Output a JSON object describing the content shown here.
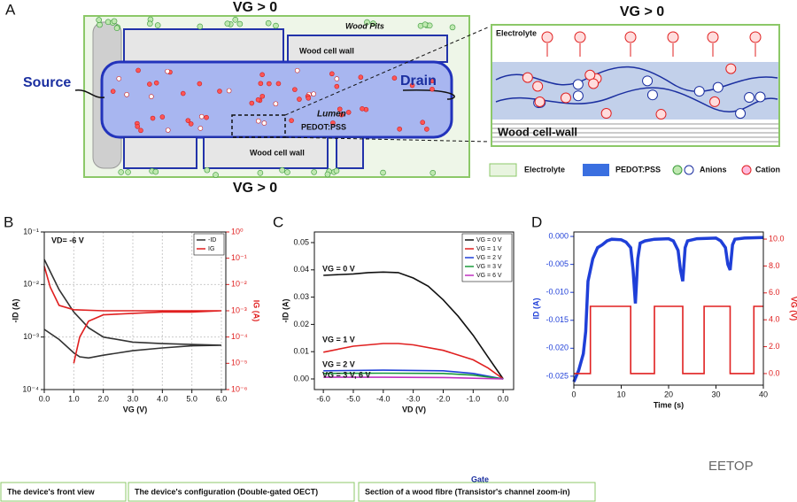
{
  "panel_labels": [
    "A",
    "B",
    "C",
    "D"
  ],
  "diagram": {
    "gate_top": "VG > 0",
    "gate_bottom": "VG > 0",
    "source": "Source",
    "drain": "Drain",
    "wood_pits": "Wood Pits",
    "wood_cell_wall_top": "Wood cell wall",
    "wood_cell_wall_bottom": "Wood cell wall",
    "lumen": "Lumen",
    "pedot": "PEDOT:PSS"
  },
  "zoom": {
    "gate": "VG > 0",
    "electrolyte": "Electrolyte",
    "wall": "Wood cell-wall"
  },
  "legend": [
    "Electrolyte",
    "PEDOT:PSS",
    "Anions",
    "Cation"
  ],
  "captions": [
    "The device's front view",
    "The device's configuration (Double-gated OECT)",
    "Section of a wood fibre (Transistor's channel zoom-in)"
  ],
  "gate_caption": "Gate",
  "watermark": "EETOP",
  "chart_data": [
    {
      "type": "line",
      "xlabel": "VG (V)",
      "ylabel": "-ID (A)",
      "y2label": "IG (A)",
      "ylog": true,
      "y2log": true,
      "grid": true,
      "legend": "upper right",
      "y2_axis_color": "#e02020",
      "annotations": [
        "VD= -6 V"
      ],
      "xlim": [
        0,
        6.15
      ],
      "xticks": [
        {
          "value": 0,
          "label": "0.0"
        },
        {
          "value": 1,
          "label": "1.0"
        },
        {
          "value": 2,
          "label": "2.0"
        },
        {
          "value": 3,
          "label": "3.0"
        },
        {
          "value": 4,
          "label": "4.0"
        },
        {
          "value": 5,
          "label": "5.0"
        },
        {
          "value": 6,
          "label": "6.0"
        }
      ],
      "ylim": [
        0.0001,
        0.1
      ],
      "yticks": [
        {
          "value": 0.0001,
          "label": "10⁻⁴"
        },
        {
          "value": 0.001,
          "label": "10⁻³"
        },
        {
          "value": 0.01,
          "label": "10⁻²"
        },
        {
          "value": 0.1,
          "label": "10⁻¹"
        }
      ],
      "y2lim": [
        1e-06,
        1
      ],
      "y2ticks": [
        {
          "value": 1e-06,
          "label": "10⁻⁶"
        },
        {
          "value": 1e-05,
          "label": "10⁻⁵"
        },
        {
          "value": 0.0001,
          "label": "10⁻⁴"
        },
        {
          "value": 0.001,
          "label": "10⁻³"
        },
        {
          "value": 0.01,
          "label": "10⁻²"
        },
        {
          "value": 0.1,
          "label": "10⁻¹"
        },
        {
          "value": 1,
          "label": "10⁰"
        }
      ],
      "series": [
        {
          "name": "-ID",
          "color": "#333333",
          "x": [
            0,
            0.5,
            1,
            1.5,
            2,
            3,
            4,
            5,
            6,
            5,
            4,
            3,
            2,
            1.5,
            1.2,
            1,
            0.5,
            0
          ],
          "values": [
            0.03,
            0.008,
            0.003,
            0.0015,
            0.001,
            0.0008,
            0.00075,
            0.00072,
            0.0007,
            0.00068,
            0.00062,
            0.00055,
            0.00045,
            0.0004,
            0.00042,
            0.0005,
            0.0009,
            0.0014
          ]
        },
        {
          "name": "IG",
          "color": "#e02020",
          "axis": "y2",
          "x": [
            0,
            0.2,
            0.5,
            1,
            2,
            3,
            4,
            5,
            6,
            5,
            4,
            3,
            2,
            1.5,
            1.2,
            1
          ],
          "values": [
            0.05,
            0.008,
            0.0016,
            0.0011,
            0.001,
            0.001,
            0.001,
            0.001,
            0.001,
            0.0009,
            0.0009,
            0.0008,
            0.0007,
            0.0004,
            0.0001,
            1e-05
          ]
        }
      ]
    },
    {
      "type": "line",
      "xlabel": "VD (V)",
      "ylabel": "-ID (A)",
      "legend": "upper right",
      "annotations": [
        "VG = 0 V",
        "VG = 1 V",
        "VG = 2 V",
        "VG = 3 V, 6 V"
      ],
      "xlim": [
        -6.3,
        0.35
      ],
      "xticks": [
        {
          "value": -6,
          "label": "-6.0"
        },
        {
          "value": -5,
          "label": "-5.0"
        },
        {
          "value": -4,
          "label": "-4.0"
        },
        {
          "value": -3,
          "label": "-3.0"
        },
        {
          "value": -2,
          "label": "-2.0"
        },
        {
          "value": -1,
          "label": "-1.0"
        },
        {
          "value": 0,
          "label": "0.0"
        }
      ],
      "ylim": [
        -0.0039,
        0.0539
      ],
      "yticks": [
        {
          "value": 0,
          "label": "0.00"
        },
        {
          "value": 0.01,
          "label": "0.01"
        },
        {
          "value": 0.02,
          "label": "0.02"
        },
        {
          "value": 0.03,
          "label": "0.03"
        },
        {
          "value": 0.04,
          "label": "0.04"
        },
        {
          "value": 0.05,
          "label": "0.05"
        }
      ],
      "series": [
        {
          "name": "VG = 0 V",
          "color": "#111111",
          "x": [
            -6,
            -5,
            -4.5,
            -4,
            -3.5,
            -3,
            -2.5,
            -2,
            -1.5,
            -1,
            -0.5,
            0
          ],
          "values": [
            0.038,
            0.0385,
            0.039,
            0.0392,
            0.039,
            0.037,
            0.034,
            0.029,
            0.023,
            0.016,
            0.008,
            0
          ]
        },
        {
          "name": "VG = 1 V",
          "color": "#e02020",
          "x": [
            -6,
            -5,
            -4,
            -3.5,
            -3,
            -2,
            -1,
            -0.5,
            0
          ],
          "values": [
            0.0098,
            0.012,
            0.013,
            0.013,
            0.0125,
            0.0105,
            0.007,
            0.004,
            0
          ]
        },
        {
          "name": "VG = 2 V",
          "color": "#1f3fd8",
          "x": [
            -6,
            -4,
            -2,
            -1,
            0
          ],
          "values": [
            0.003,
            0.0032,
            0.003,
            0.002,
            0
          ]
        },
        {
          "name": "VG = 3 V",
          "color": "#1a9a3a",
          "x": [
            -6,
            -4,
            -2,
            -1,
            0
          ],
          "values": [
            0.002,
            0.0021,
            0.002,
            0.0014,
            0
          ]
        },
        {
          "name": "VG = 6 V",
          "color": "#c030c0",
          "x": [
            -6,
            -4,
            -2,
            0
          ],
          "values": [
            0.0006,
            0.0006,
            0.0005,
            0
          ]
        }
      ]
    },
    {
      "type": "line",
      "xlabel": "Time (s)",
      "ylabel": "ID (A)",
      "y2label": "VG (V)",
      "y_axis_color": "#1f3fd8",
      "y2_axis_color": "#e02020",
      "xlim": [
        0,
        40
      ],
      "xticks": [
        0,
        10,
        20,
        30,
        40
      ],
      "ylim": [
        -0.0266,
        0.0008
      ],
      "yticks": [
        {
          "value": 0,
          "label": "0.000"
        },
        -0.005,
        {
          "value": -0.01,
          "label": "-0.010"
        },
        -0.015,
        {
          "value": -0.02,
          "label": "-0.020"
        },
        -0.025
      ],
      "y2lim": [
        -0.86,
        10.53
      ],
      "y2ticks": [
        {
          "value": 0,
          "label": "0.0"
        },
        {
          "value": 2,
          "label": "2.0"
        },
        {
          "value": 4,
          "label": "4.0"
        },
        {
          "value": 6,
          "label": "6.0"
        },
        {
          "value": 8,
          "label": "8.0"
        },
        {
          "value": 10,
          "label": "10.0"
        }
      ],
      "series": [
        {
          "name": "ID",
          "color": "#1f3fd8",
          "x": [
            0,
            1,
            2,
            2.5,
            3,
            4,
            5,
            6,
            7,
            8,
            10,
            11,
            12,
            12.5,
            13,
            13.5,
            14,
            15,
            17,
            20,
            21,
            22,
            22.5,
            23,
            23.5,
            24,
            26,
            30,
            31,
            32,
            32.5,
            33,
            33.5,
            34,
            36,
            40
          ],
          "values": [
            -0.026,
            -0.024,
            -0.021,
            -0.017,
            -0.008,
            -0.004,
            -0.002,
            -0.0015,
            -0.0008,
            -0.0005,
            -0.0006,
            -0.001,
            -0.002,
            -0.006,
            -0.012,
            -0.004,
            -0.0012,
            -0.0008,
            -0.0005,
            -0.0004,
            -0.0008,
            -0.0025,
            -0.006,
            -0.008,
            -0.002,
            -0.0008,
            -0.0004,
            -0.0003,
            -0.0008,
            -0.002,
            -0.005,
            -0.006,
            -0.0015,
            -0.0005,
            -0.0003,
            -0.0002
          ]
        },
        {
          "name": "VG",
          "color": "#e02020",
          "axis": "y2",
          "x": [
            0,
            3.5,
            3.5,
            12,
            12,
            17,
            17,
            23,
            23,
            27.5,
            27.5,
            33,
            33,
            38,
            38,
            40
          ],
          "values": [
            0,
            0,
            5,
            5,
            0,
            0,
            5,
            5,
            0,
            0,
            5,
            5,
            0,
            0,
            5,
            5
          ]
        }
      ]
    }
  ]
}
